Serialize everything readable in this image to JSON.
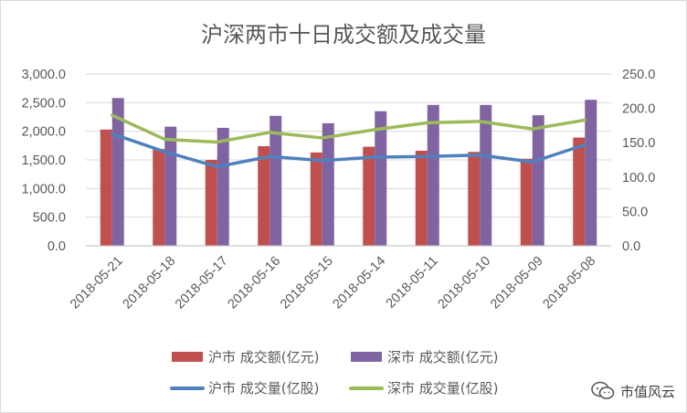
{
  "chart_data": {
    "type": "bar",
    "title": "沪深两市十日成交额及成交量",
    "categories": [
      "2018-05-21",
      "2018-05-18",
      "2018-05-17",
      "2018-05-16",
      "2018-05-15",
      "2018-05-14",
      "2018-05-11",
      "2018-05-10",
      "2018-05-09",
      "2018-05-08"
    ],
    "ylim_left": [
      0,
      3000
    ],
    "yticks_left": [
      "0.0",
      "500.0",
      "1,000.0",
      "1,500.0",
      "2,000.0",
      "2,500.0",
      "3,000.0"
    ],
    "ylim_right": [
      0,
      250
    ],
    "yticks_right": [
      "0.0",
      "50.0",
      "100.0",
      "150.0",
      "200.0",
      "250.0"
    ],
    "grid": true,
    "legend_position": "bottom",
    "bar_series": [
      {
        "name": "沪市 成交额(亿元)",
        "color": "#c0504d",
        "axis": "left",
        "values": [
          2030,
          1690,
          1500,
          1740,
          1630,
          1730,
          1660,
          1640,
          1520,
          1890
        ]
      },
      {
        "name": "深市 成交额(亿元)",
        "color": "#8064a2",
        "axis": "left",
        "values": [
          2580,
          2080,
          2060,
          2270,
          2140,
          2350,
          2460,
          2460,
          2280,
          2550
        ]
      }
    ],
    "line_series": [
      {
        "name": "沪市 成交量(亿股)",
        "color": "#4f81bd",
        "axis": "right",
        "values": [
          163,
          137,
          115,
          130,
          124,
          129,
          130,
          132,
          122,
          147
        ]
      },
      {
        "name": "深市 成交量(亿股)",
        "color": "#9bbb59",
        "axis": "right",
        "values": [
          190,
          155,
          151,
          165,
          157,
          169,
          179,
          181,
          170,
          183
        ]
      }
    ]
  },
  "watermark": {
    "text": "市值风云",
    "icon": "wechat-icon"
  }
}
